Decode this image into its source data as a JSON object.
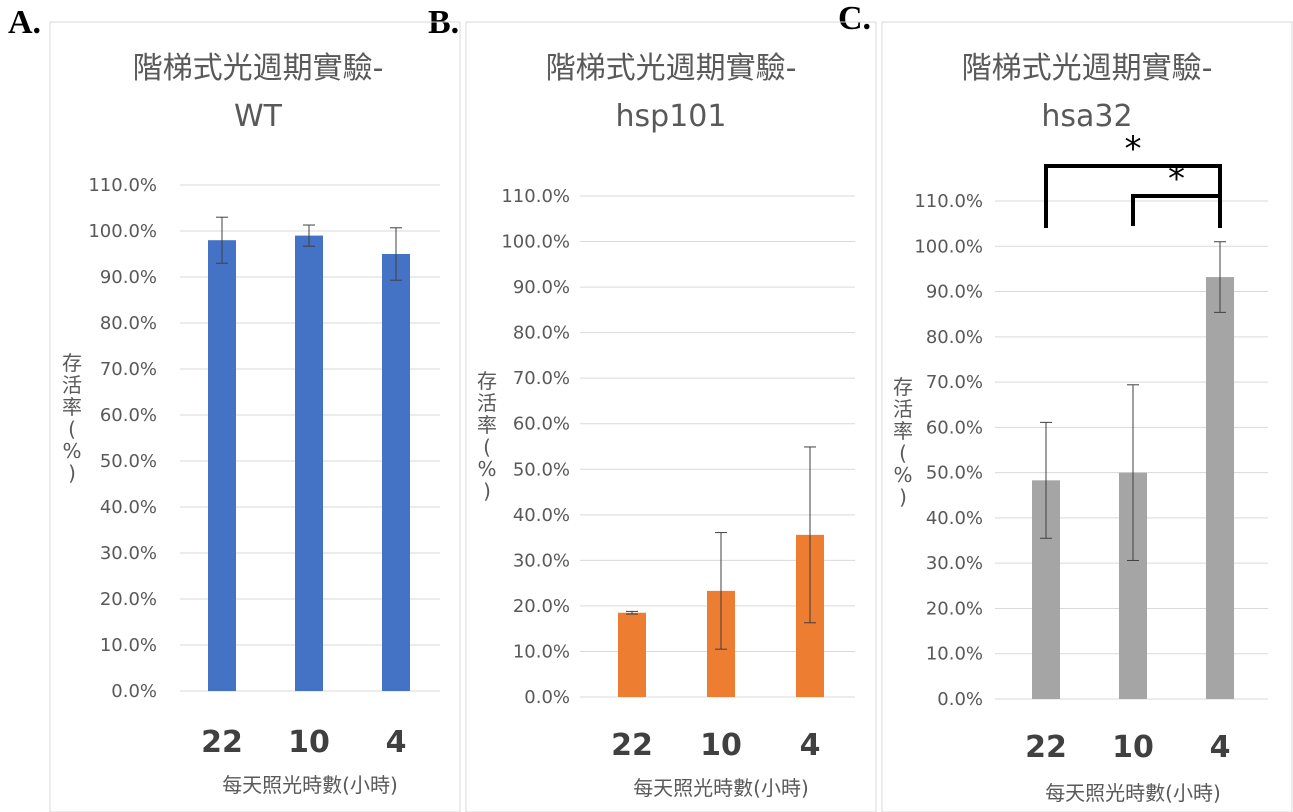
{
  "panels": [
    {
      "letter": "A.",
      "title_line1": "階梯式光週期實驗-",
      "title_line2": "WT",
      "bar_color": "#4472C4"
    },
    {
      "letter": "B.",
      "title_line1": "階梯式光週期實驗-",
      "title_line2": "hsp101",
      "bar_color": "#ED7D31"
    },
    {
      "letter": "C.",
      "title_line1": "階梯式光週期實驗-",
      "title_line2": "hsa32",
      "bar_color": "#A5A5A5"
    }
  ],
  "chart_data": [
    {
      "type": "bar",
      "title": "階梯式光週期實驗-WT",
      "categories": [
        "22",
        "10",
        "4"
      ],
      "values": [
        98.0,
        99.0,
        95.0
      ],
      "error": [
        5.0,
        2.3,
        5.7
      ],
      "xlabel": "每天照光時數(小時)",
      "ylabel": "存活率(%)",
      "ylim": [
        0,
        110
      ],
      "yticks": [
        "0.0%",
        "10.0%",
        "20.0%",
        "30.0%",
        "40.0%",
        "50.0%",
        "60.0%",
        "70.0%",
        "80.0%",
        "90.0%",
        "100.0%",
        "110.0%"
      ],
      "grid": true,
      "significance": []
    },
    {
      "type": "bar",
      "title": "階梯式光週期實驗-hsp101",
      "categories": [
        "22",
        "10",
        "4"
      ],
      "values": [
        18.5,
        23.3,
        35.6
      ],
      "error": [
        0.3,
        12.8,
        19.3
      ],
      "xlabel": "每天照光時數(小時)",
      "ylabel": "存活率(%)",
      "ylim": [
        0,
        110
      ],
      "yticks": [
        "0.0%",
        "10.0%",
        "20.0%",
        "30.0%",
        "40.0%",
        "50.0%",
        "60.0%",
        "70.0%",
        "80.0%",
        "90.0%",
        "100.0%",
        "110.0%"
      ],
      "grid": true,
      "significance": []
    },
    {
      "type": "bar",
      "title": "階梯式光週期實驗-hsa32",
      "categories": [
        "22",
        "10",
        "4"
      ],
      "values": [
        48.3,
        50.0,
        93.2
      ],
      "error": [
        12.8,
        19.4,
        7.8
      ],
      "xlabel": "每天照光時數(小時)",
      "ylabel": "存活率(%)",
      "ylim": [
        0,
        110
      ],
      "yticks": [
        "0.0%",
        "10.0%",
        "20.0%",
        "30.0%",
        "40.0%",
        "50.0%",
        "60.0%",
        "70.0%",
        "80.0%",
        "90.0%",
        "100.0%",
        "110.0%"
      ],
      "grid": true,
      "significance": [
        {
          "from": "22",
          "to": "4",
          "label": "*"
        },
        {
          "from": "10",
          "to": "4",
          "label": "*"
        }
      ]
    }
  ]
}
